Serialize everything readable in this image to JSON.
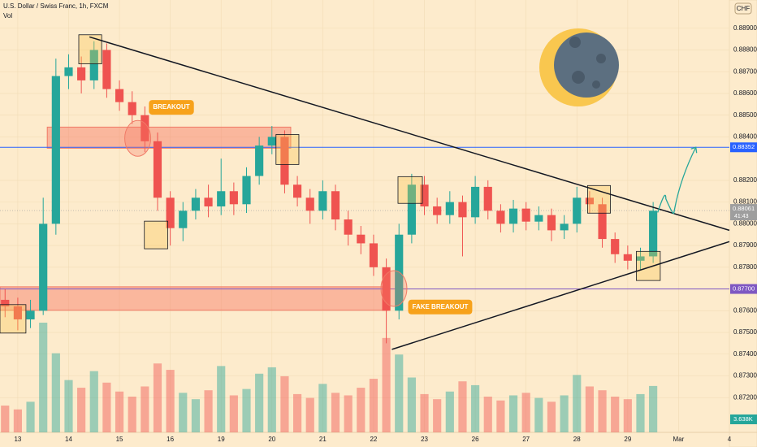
{
  "chart_data": {
    "type": "candlestick",
    "title": "U.S. Dollar / Swiss Franc, 1h, FXCM",
    "volume_title": "Vol",
    "currency": "CHF",
    "x": [
      -0.25,
      0,
      0.25,
      0.5,
      0.75,
      1,
      1.25,
      1.5,
      1.75,
      2,
      2.25,
      2.5,
      2.75,
      3,
      3.25,
      3.5,
      3.75,
      4,
      4.25,
      4.5,
      4.75,
      5,
      5.25,
      5.5,
      5.75,
      6,
      6.25,
      6.5,
      6.75,
      7,
      7.25,
      7.5,
      7.75,
      8,
      8.25,
      8.5,
      8.75,
      9,
      9.25,
      9.5,
      9.75,
      10,
      10.25,
      10.5,
      10.75,
      11,
      11.25,
      11.5,
      11.75,
      12,
      12.25,
      12.5
    ],
    "open": [
      0.8765,
      0.8762,
      0.8756,
      0.876,
      0.88,
      0.8868,
      0.8872,
      0.8866,
      0.888,
      0.8862,
      0.8856,
      0.885,
      0.8838,
      0.8812,
      0.8798,
      0.8806,
      0.8812,
      0.8808,
      0.8815,
      0.8809,
      0.8822,
      0.8836,
      0.884,
      0.8818,
      0.8812,
      0.8806,
      0.8815,
      0.8802,
      0.8795,
      0.8791,
      0.878,
      0.876,
      0.8795,
      0.8818,
      0.8808,
      0.8804,
      0.881,
      0.8803,
      0.8817,
      0.8806,
      0.88,
      0.8807,
      0.8801,
      0.8804,
      0.8797,
      0.88,
      0.8812,
      0.8809,
      0.8793,
      0.8786,
      0.8783,
      0.8785
    ],
    "high": [
      0.877,
      0.8766,
      0.8765,
      0.8812,
      0.8876,
      0.8878,
      0.8877,
      0.8884,
      0.8883,
      0.8866,
      0.8861,
      0.8854,
      0.8842,
      0.8815,
      0.881,
      0.8816,
      0.8818,
      0.883,
      0.8819,
      0.8826,
      0.884,
      0.8845,
      0.8843,
      0.8822,
      0.8816,
      0.882,
      0.8818,
      0.8806,
      0.8799,
      0.8795,
      0.8784,
      0.88,
      0.8823,
      0.8822,
      0.8812,
      0.8815,
      0.8813,
      0.8822,
      0.882,
      0.8809,
      0.8811,
      0.881,
      0.8808,
      0.8807,
      0.8804,
      0.8817,
      0.8815,
      0.8812,
      0.8796,
      0.879,
      0.8789,
      0.881
    ],
    "low": [
      0.8757,
      0.8751,
      0.8752,
      0.8758,
      0.8795,
      0.8862,
      0.886,
      0.8862,
      0.8858,
      0.8852,
      0.8846,
      0.8833,
      0.8806,
      0.879,
      0.8792,
      0.8802,
      0.8803,
      0.8804,
      0.8804,
      0.8805,
      0.8818,
      0.8832,
      0.8814,
      0.8808,
      0.88,
      0.8802,
      0.8797,
      0.879,
      0.8786,
      0.8776,
      0.8745,
      0.8756,
      0.8791,
      0.8804,
      0.88,
      0.88,
      0.8785,
      0.88,
      0.8802,
      0.8796,
      0.8796,
      0.8797,
      0.8797,
      0.8792,
      0.8793,
      0.8796,
      0.8805,
      0.8789,
      0.8782,
      0.8779,
      0.8779,
      0.8782
    ],
    "close": [
      0.8762,
      0.8756,
      0.876,
      0.88,
      0.8868,
      0.8872,
      0.8866,
      0.888,
      0.8862,
      0.8856,
      0.885,
      0.8838,
      0.8812,
      0.8798,
      0.8806,
      0.8812,
      0.8808,
      0.8815,
      0.8809,
      0.8822,
      0.8836,
      0.884,
      0.8818,
      0.8812,
      0.8806,
      0.8815,
      0.8802,
      0.8795,
      0.8791,
      0.878,
      0.876,
      0.8795,
      0.8818,
      0.8808,
      0.8804,
      0.881,
      0.8803,
      0.8817,
      0.8806,
      0.88,
      0.8807,
      0.8801,
      0.8804,
      0.8797,
      0.88,
      0.8812,
      0.8809,
      0.8793,
      0.8786,
      0.8783,
      0.8785,
      0.8806
    ],
    "volume": [
      2.1,
      1.8,
      2.4,
      8.6,
      6.2,
      4.1,
      3.5,
      4.8,
      3.9,
      3.2,
      2.8,
      3.6,
      5.4,
      4.9,
      3.1,
      2.6,
      3.3,
      5.2,
      2.9,
      3.4,
      4.6,
      5.1,
      4.4,
      3.0,
      2.7,
      3.8,
      3.1,
      2.9,
      3.5,
      4.2,
      7.4,
      6.1,
      4.3,
      3.0,
      2.6,
      3.2,
      4.0,
      3.7,
      2.8,
      2.5,
      2.9,
      3.1,
      2.7,
      2.4,
      2.9,
      4.5,
      3.6,
      3.3,
      2.8,
      2.6,
      3.0,
      3.638
    ],
    "last_volume_label": "3.638K",
    "xlim": [
      -0.35,
      14.0
    ],
    "ylim": [
      0.8704,
      0.8903
    ],
    "yticks": [
      {
        "value": 0.889,
        "label": "0.88900"
      },
      {
        "value": 0.888,
        "label": "0.88800"
      },
      {
        "value": 0.887,
        "label": "0.88700"
      },
      {
        "value": 0.886,
        "label": "0.88600"
      },
      {
        "value": 0.885,
        "label": "0.88500"
      },
      {
        "value": 0.884,
        "label": "0.88400"
      },
      {
        "value": 0.882,
        "label": "0.88200"
      },
      {
        "value": 0.881,
        "label": "0.88100"
      },
      {
        "value": 0.88,
        "label": "0.88000"
      },
      {
        "value": 0.879,
        "label": "0.87900"
      },
      {
        "value": 0.878,
        "label": "0.87800"
      },
      {
        "value": 0.876,
        "label": "0.87600"
      },
      {
        "value": 0.875,
        "label": "0.87500"
      },
      {
        "value": 0.874,
        "label": "0.87400"
      },
      {
        "value": 0.873,
        "label": "0.87300"
      },
      {
        "value": 0.872,
        "label": "0.87200"
      }
    ],
    "xticks": [
      {
        "value": 0,
        "label": "13"
      },
      {
        "value": 1,
        "label": "14"
      },
      {
        "value": 2,
        "label": "15"
      },
      {
        "value": 3,
        "label": "16"
      },
      {
        "value": 4,
        "label": "19"
      },
      {
        "value": 5,
        "label": "20"
      },
      {
        "value": 6,
        "label": "21"
      },
      {
        "value": 7,
        "label": "22"
      },
      {
        "value": 8,
        "label": "23"
      },
      {
        "value": 9,
        "label": "26"
      },
      {
        "value": 10,
        "label": "27"
      },
      {
        "value": 11,
        "label": "28"
      },
      {
        "value": 12,
        "label": "29"
      },
      {
        "value": 13,
        "label": "Mar"
      },
      {
        "value": 14,
        "label": "4"
      }
    ],
    "grid": true,
    "up_color": "#26a69a",
    "down_color": "#ef5350",
    "levels": [
      {
        "value": 0.88352,
        "label": "0.88352",
        "color": "#2962ff"
      },
      {
        "value": 0.877,
        "label": "0.87700",
        "color": "#7e57c2"
      }
    ],
    "current_price": {
      "value": 0.88061,
      "label": "0.88061",
      "countdown": "41:43",
      "color": "#9e9e9e"
    },
    "trendlines": [
      {
        "x": [
          1.41,
          14.0
        ],
        "y": [
          0.8886,
          0.8797
        ],
        "color": "#131722"
      },
      {
        "x": [
          7.36,
          14.0
        ],
        "y": [
          0.87422,
          0.87918
        ],
        "color": "#131722"
      }
    ],
    "zones": [
      {
        "x": [
          0.58,
          5.37
        ],
        "y": [
          0.88348,
          0.88445
        ]
      },
      {
        "x": [
          -0.35,
          7.28
        ],
        "y": [
          0.87602,
          0.8771
        ]
      }
    ],
    "boxes": [
      {
        "x": [
          1.2,
          1.65
        ],
        "y": [
          0.88736,
          0.8887
        ]
      },
      {
        "x": [
          2.49,
          2.95
        ],
        "y": [
          0.87885,
          0.88012
        ]
      },
      {
        "x": [
          5.08,
          5.53
        ],
        "y": [
          0.88273,
          0.88411
        ]
      },
      {
        "x": [
          7.48,
          7.96
        ],
        "y": [
          0.88094,
          0.88217
        ]
      },
      {
        "x": [
          11.21,
          11.66
        ],
        "y": [
          0.88049,
          0.88176
        ]
      },
      {
        "x": [
          12.17,
          12.64
        ],
        "y": [
          0.87739,
          0.87873
        ]
      },
      {
        "x": [
          -0.35,
          0.16
        ],
        "y": [
          0.87497,
          0.87628
        ]
      }
    ],
    "circles": [
      {
        "x": 2.36,
        "y": 0.88393
      },
      {
        "x": 7.4,
        "y": 0.87702
      }
    ],
    "annotations": [
      {
        "text": "BREAKOUT",
        "x": 2.58,
        "y": 0.88536
      },
      {
        "text": "FAKE BREAKOUT",
        "x": 7.68,
        "y": 0.87617
      }
    ],
    "projection": {
      "x": [
        12.59,
        12.75,
        12.91,
        13.34
      ],
      "y": [
        0.88052,
        0.88115,
        0.88052,
        0.88352
      ],
      "color": "#26a69a"
    }
  }
}
